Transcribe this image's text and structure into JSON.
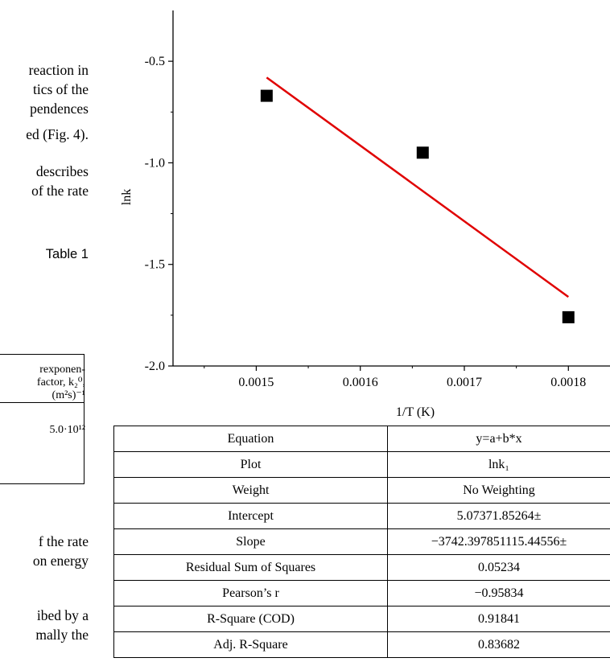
{
  "left_text": {
    "lines": [
      "reaction in",
      "tics of the",
      "pendences",
      "ed (Fig. 4).",
      "describes",
      "of the rate"
    ],
    "table_caption": "Table 1",
    "table_header": [
      "rexponen-",
      "factor, k₂⁰,",
      "(m²s)⁻¹"
    ],
    "table_value": "5.0·10¹²",
    "lines_bottom": [
      "f the rate",
      "on energy",
      "ibed by a",
      "mally the"
    ]
  },
  "chart_data": {
    "type": "scatter",
    "xlabel": "1/T (K)",
    "ylabel": "lnk",
    "xlim": [
      0.00142,
      0.00184
    ],
    "ylim": [
      -2.0,
      -0.25
    ],
    "x_ticks": [
      0.0015,
      0.0016,
      0.0017,
      0.0018
    ],
    "x_tick_labels": [
      "0.0015",
      "0.0016",
      "0.0017",
      "0.0018"
    ],
    "y_ticks": [
      -0.5,
      -1.0,
      -1.5,
      -2.0
    ],
    "y_tick_labels": [
      "-0.5",
      "-1.0",
      "-1.5",
      "-2.0"
    ],
    "points": [
      {
        "x": 0.00151,
        "y": -0.67
      },
      {
        "x": 0.00166,
        "y": -0.95
      },
      {
        "x": 0.0018,
        "y": -1.76
      }
    ],
    "fit_line": {
      "x": [
        0.00151,
        0.0018
      ],
      "y": [
        -0.58,
        -1.66
      ]
    },
    "marker_color": "#000000",
    "line_color": "#e00000"
  },
  "stats_table": {
    "rows": [
      {
        "label": "Equation",
        "value": "y=a+b*x"
      },
      {
        "label": "Plot",
        "value": "lnk₁"
      },
      {
        "label": "Weight",
        "value": "No Weighting"
      },
      {
        "label": "Intercept",
        "value": "5.07371.85264±"
      },
      {
        "label": "Slope",
        "value": "−3742.397851115.44556±"
      },
      {
        "label": "Residual Sum of Squares",
        "value": "0.05234"
      },
      {
        "label": "Pearson’s r",
        "value": "−0.95834"
      },
      {
        "label": "R-Square (COD)",
        "value": "0.91841"
      },
      {
        "label": "Adj. R-Square",
        "value": "0.83682"
      }
    ]
  }
}
